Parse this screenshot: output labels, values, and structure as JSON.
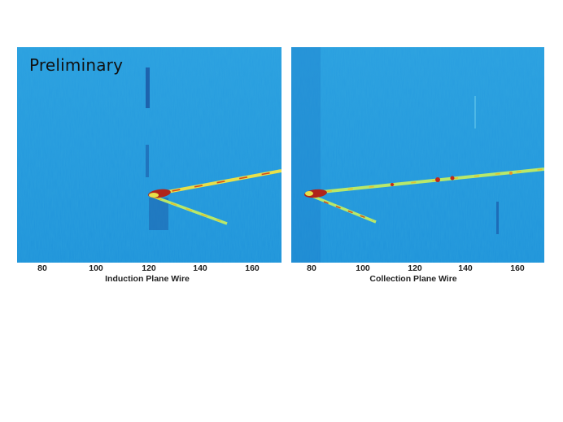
{
  "overlay_label": "Preliminary",
  "panels": [
    {
      "axis_title": "Induction Plane Wire",
      "ticks": [
        "80",
        "100",
        "120",
        "140",
        "160"
      ]
    },
    {
      "axis_title": "Collection Plane Wire",
      "ticks": [
        "80",
        "100",
        "120",
        "140",
        "160"
      ]
    }
  ]
}
